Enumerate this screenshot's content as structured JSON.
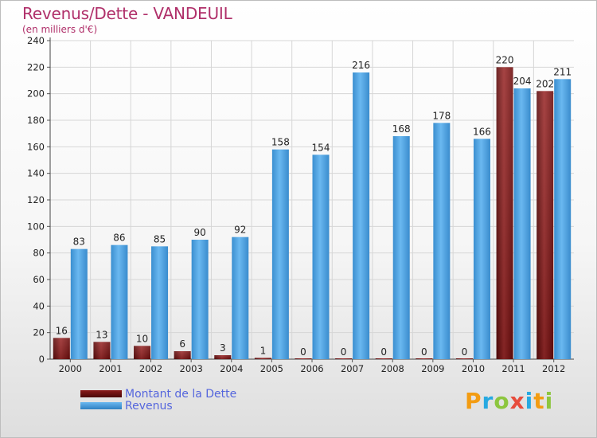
{
  "title": "Revenus/Dette - VANDEUIL",
  "subtitle": "(en milliers d'€)",
  "logo": {
    "text": "Proxiti",
    "letters": [
      "P",
      "r",
      "o",
      "x",
      "i",
      "t",
      "i"
    ],
    "colors": [
      "#f39c12",
      "#27a9e1",
      "#8dc63f",
      "#e74c3c",
      "#27a9e1",
      "#f39c12",
      "#8dc63f"
    ]
  },
  "legend": [
    {
      "label": "Montant de la Dette",
      "color": "#7a1010"
    },
    {
      "label": "Revenus",
      "color": "#4aa3e3"
    }
  ],
  "chart_data": {
    "type": "bar",
    "title": "Revenus/Dette - VANDEUIL",
    "subtitle": "(en milliers d'€)",
    "categories": [
      "2000",
      "2001",
      "2002",
      "2003",
      "2004",
      "2005",
      "2006",
      "2007",
      "2008",
      "2009",
      "2010",
      "2011",
      "2012"
    ],
    "series": [
      {
        "name": "Montant de la Dette",
        "color": "#7a1010",
        "values": [
          16,
          13,
          10,
          6,
          3,
          1,
          0,
          0,
          0,
          0,
          0,
          220,
          202
        ]
      },
      {
        "name": "Revenus",
        "color": "#4aa3e3",
        "values": [
          83,
          86,
          85,
          90,
          92,
          158,
          154,
          216,
          168,
          178,
          166,
          204,
          211
        ]
      }
    ],
    "ylim": [
      0,
      240
    ],
    "yticks": [
      0,
      20,
      40,
      60,
      80,
      100,
      120,
      140,
      160,
      180,
      200,
      220,
      240
    ],
    "grid": true,
    "legend_position": "bottom-left"
  }
}
